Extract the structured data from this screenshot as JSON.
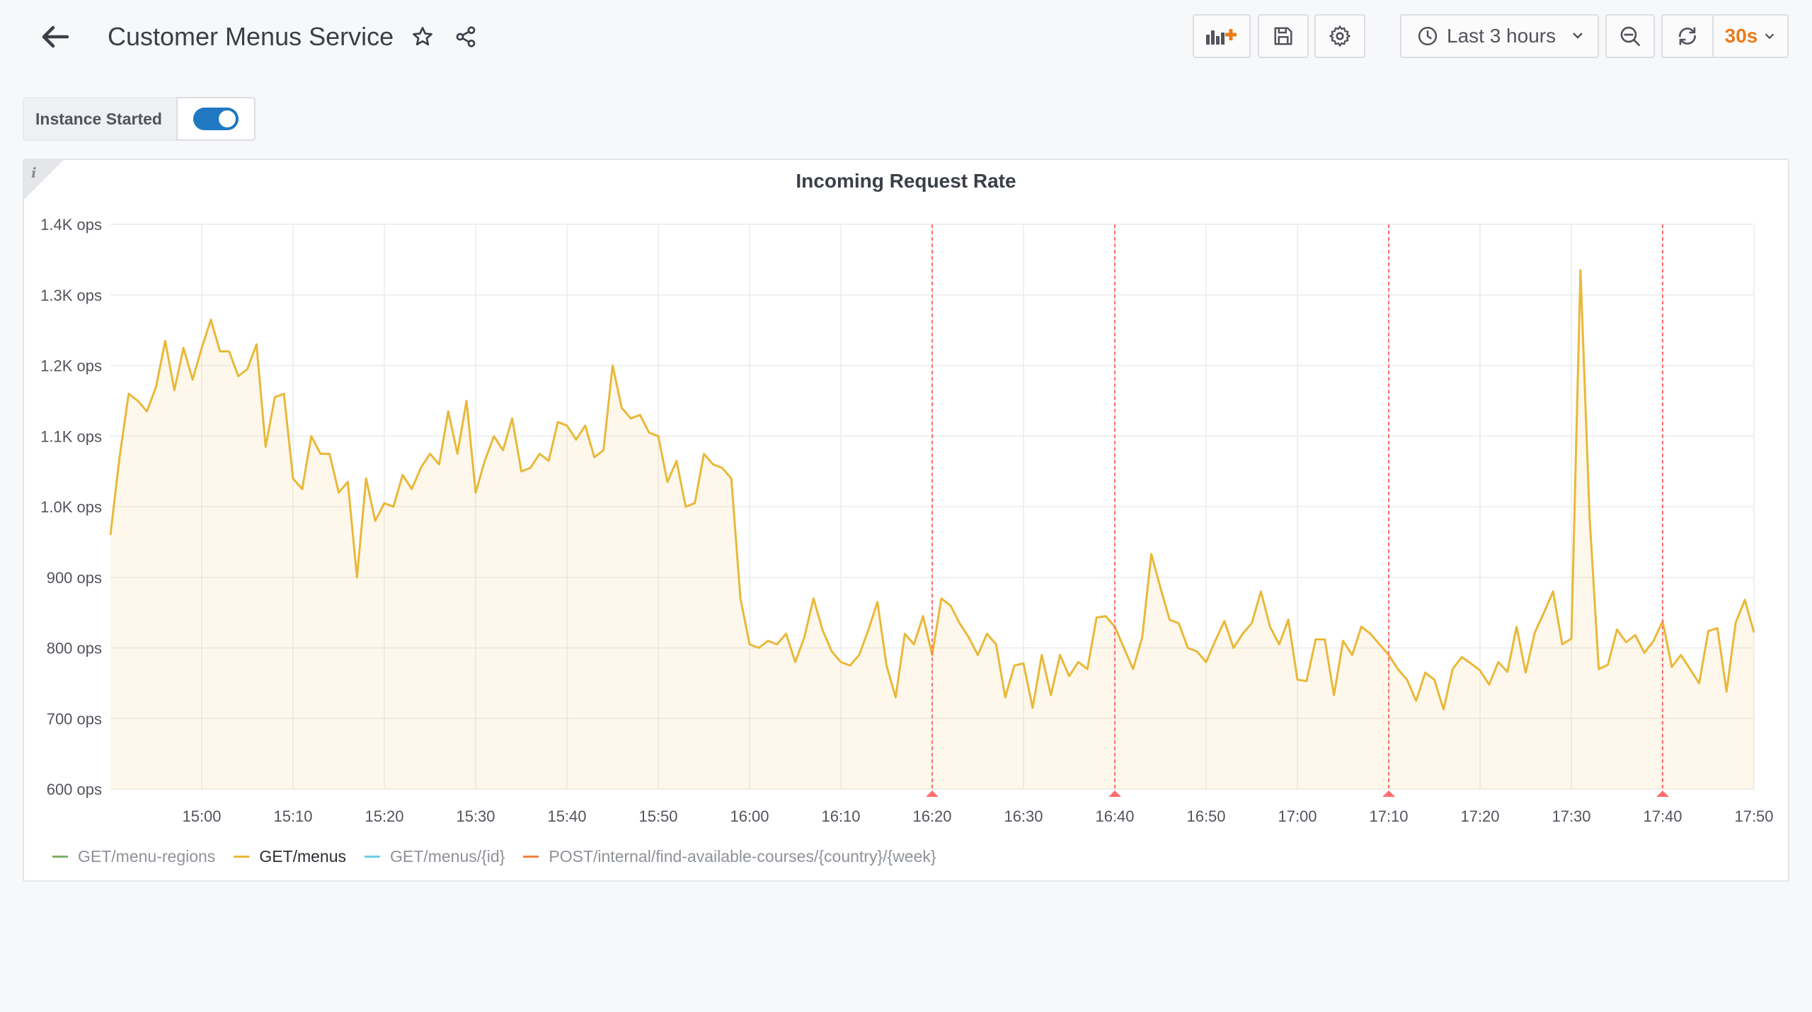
{
  "navbar": {
    "title": "Customer Menus Service",
    "time_range": "Last 3 hours",
    "refresh_interval": "30s"
  },
  "variables": {
    "instance_started": {
      "label": "Instance Started",
      "value": true
    }
  },
  "panel": {
    "title": "Incoming Request Rate",
    "info_glyph": "i",
    "legend": [
      {
        "label": "GET/menu-regions",
        "color": "#7eb26d",
        "active": false
      },
      {
        "label": "GET/menus",
        "color": "#eab839",
        "active": true
      },
      {
        "label": "GET/menus/{id}",
        "color": "#6ed0e0",
        "active": false
      },
      {
        "label": "POST/internal/find-available-courses/{country}/{week}",
        "color": "#ef843c",
        "active": false
      }
    ]
  },
  "chart_data": {
    "type": "area",
    "ylim": [
      600,
      1400
    ],
    "y_tick_labels": [
      "1.4K ops",
      "1.3K ops",
      "1.2K ops",
      "1.1K ops",
      "1.0K ops",
      "900 ops",
      "800 ops",
      "700 ops",
      "600 ops"
    ],
    "y_tick_values": [
      1400,
      1300,
      1200,
      1100,
      1000,
      900,
      800,
      700,
      600
    ],
    "x_range_minutes": [
      "14:50",
      "17:50"
    ],
    "x_tick_labels": [
      "15:00",
      "15:10",
      "15:20",
      "15:30",
      "15:40",
      "15:50",
      "16:00",
      "16:10",
      "16:20",
      "16:30",
      "16:40",
      "16:50",
      "17:00",
      "17:10",
      "17:20",
      "17:30",
      "17:40",
      "17:50"
    ],
    "grid": true,
    "legend_position": "bottom",
    "annotations": [
      "16:20",
      "16:40",
      "17:10",
      "17:40"
    ],
    "annotation_color": "#ff6f6f",
    "series": [
      {
        "name": "GET/menus",
        "color": "#eab839",
        "points": [
          [
            "14:50",
            960
          ],
          [
            "14:51",
            1070
          ],
          [
            "14:52",
            1160
          ],
          [
            "14:53",
            1150
          ],
          [
            "14:54",
            1135
          ],
          [
            "14:55",
            1170
          ],
          [
            "14:56",
            1235
          ],
          [
            "14:57",
            1165
          ],
          [
            "14:58",
            1225
          ],
          [
            "14:59",
            1180
          ],
          [
            "15:00",
            1225
          ],
          [
            "15:01",
            1265
          ],
          [
            "15:02",
            1220
          ],
          [
            "15:03",
            1220
          ],
          [
            "15:04",
            1185
          ],
          [
            "15:05",
            1195
          ],
          [
            "15:06",
            1230
          ],
          [
            "15:07",
            1085
          ],
          [
            "15:08",
            1155
          ],
          [
            "15:09",
            1160
          ],
          [
            "15:10",
            1040
          ],
          [
            "15:11",
            1025
          ],
          [
            "15:12",
            1100
          ],
          [
            "15:13",
            1075
          ],
          [
            "15:14",
            1075
          ],
          [
            "15:15",
            1020
          ],
          [
            "15:16",
            1035
          ],
          [
            "15:17",
            900
          ],
          [
            "15:18",
            1040
          ],
          [
            "15:19",
            980
          ],
          [
            "15:20",
            1005
          ],
          [
            "15:21",
            1000
          ],
          [
            "15:22",
            1045
          ],
          [
            "15:23",
            1025
          ],
          [
            "15:24",
            1055
          ],
          [
            "15:25",
            1075
          ],
          [
            "15:26",
            1060
          ],
          [
            "15:27",
            1135
          ],
          [
            "15:28",
            1075
          ],
          [
            "15:29",
            1150
          ],
          [
            "15:30",
            1020
          ],
          [
            "15:31",
            1065
          ],
          [
            "15:32",
            1100
          ],
          [
            "15:33",
            1080
          ],
          [
            "15:34",
            1125
          ],
          [
            "15:35",
            1050
          ],
          [
            "15:36",
            1055
          ],
          [
            "15:37",
            1075
          ],
          [
            "15:38",
            1065
          ],
          [
            "15:39",
            1120
          ],
          [
            "15:40",
            1115
          ],
          [
            "15:41",
            1095
          ],
          [
            "15:42",
            1115
          ],
          [
            "15:43",
            1070
          ],
          [
            "15:44",
            1080
          ],
          [
            "15:45",
            1200
          ],
          [
            "15:46",
            1140
          ],
          [
            "15:47",
            1125
          ],
          [
            "15:48",
            1130
          ],
          [
            "15:49",
            1105
          ],
          [
            "15:50",
            1100
          ],
          [
            "15:51",
            1035
          ],
          [
            "15:52",
            1065
          ],
          [
            "15:53",
            1000
          ],
          [
            "15:54",
            1005
          ],
          [
            "15:55",
            1075
          ],
          [
            "15:56",
            1060
          ],
          [
            "15:57",
            1055
          ],
          [
            "15:58",
            1040
          ],
          [
            "15:59",
            870
          ],
          [
            "16:00",
            805
          ],
          [
            "16:01",
            800
          ],
          [
            "16:02",
            810
          ],
          [
            "16:03",
            805
          ],
          [
            "16:04",
            820
          ],
          [
            "16:05",
            780
          ],
          [
            "16:06",
            815
          ],
          [
            "16:07",
            870
          ],
          [
            "16:08",
            825
          ],
          [
            "16:09",
            795
          ],
          [
            "16:10",
            780
          ],
          [
            "16:11",
            775
          ],
          [
            "16:12",
            790
          ],
          [
            "16:13",
            825
          ],
          [
            "16:14",
            865
          ],
          [
            "16:15",
            775
          ],
          [
            "16:16",
            730
          ],
          [
            "16:17",
            820
          ],
          [
            "16:18",
            805
          ],
          [
            "16:19",
            845
          ],
          [
            "16:20",
            790
          ],
          [
            "16:21",
            870
          ],
          [
            "16:22",
            860
          ],
          [
            "16:23",
            835
          ],
          [
            "16:24",
            815
          ],
          [
            "16:25",
            790
          ],
          [
            "16:26",
            820
          ],
          [
            "16:27",
            805
          ],
          [
            "16:28",
            730
          ],
          [
            "16:29",
            775
          ],
          [
            "16:30",
            778
          ],
          [
            "16:31",
            715
          ],
          [
            "16:32",
            790
          ],
          [
            "16:33",
            733
          ],
          [
            "16:34",
            790
          ],
          [
            "16:35",
            760
          ],
          [
            "16:36",
            780
          ],
          [
            "16:37",
            770
          ],
          [
            "16:38",
            843
          ],
          [
            "16:39",
            845
          ],
          [
            "16:40",
            830
          ],
          [
            "16:41",
            800
          ],
          [
            "16:42",
            770
          ],
          [
            "16:43",
            815
          ],
          [
            "16:44",
            933
          ],
          [
            "16:45",
            885
          ],
          [
            "16:46",
            840
          ],
          [
            "16:47",
            835
          ],
          [
            "16:48",
            800
          ],
          [
            "16:49",
            795
          ],
          [
            "16:50",
            780
          ],
          [
            "16:51",
            810
          ],
          [
            "16:52",
            838
          ],
          [
            "16:53",
            800
          ],
          [
            "16:54",
            820
          ],
          [
            "16:55",
            835
          ],
          [
            "16:56",
            880
          ],
          [
            "16:57",
            830
          ],
          [
            "16:58",
            805
          ],
          [
            "16:59",
            840
          ],
          [
            "17:00",
            755
          ],
          [
            "17:01",
            753
          ],
          [
            "17:02",
            812
          ],
          [
            "17:03",
            812
          ],
          [
            "17:04",
            733
          ],
          [
            "17:05",
            810
          ],
          [
            "17:06",
            790
          ],
          [
            "17:07",
            830
          ],
          [
            "17:08",
            820
          ],
          [
            "17:09",
            805
          ],
          [
            "17:10",
            790
          ],
          [
            "17:11",
            770
          ],
          [
            "17:12",
            755
          ],
          [
            "17:13",
            725
          ],
          [
            "17:14",
            765
          ],
          [
            "17:15",
            755
          ],
          [
            "17:16",
            713
          ],
          [
            "17:17",
            770
          ],
          [
            "17:18",
            787
          ],
          [
            "17:19",
            778
          ],
          [
            "17:20",
            768
          ],
          [
            "17:21",
            748
          ],
          [
            "17:22",
            780
          ],
          [
            "17:23",
            766
          ],
          [
            "17:24",
            830
          ],
          [
            "17:25",
            765
          ],
          [
            "17:26",
            822
          ],
          [
            "17:27",
            850
          ],
          [
            "17:28",
            880
          ],
          [
            "17:29",
            805
          ],
          [
            "17:30",
            813
          ],
          [
            "17:31",
            1335
          ],
          [
            "17:32",
            985
          ],
          [
            "17:33",
            770
          ],
          [
            "17:34",
            776
          ],
          [
            "17:35",
            826
          ],
          [
            "17:36",
            808
          ],
          [
            "17:37",
            818
          ],
          [
            "17:38",
            793
          ],
          [
            "17:39",
            810
          ],
          [
            "17:40",
            838
          ],
          [
            "17:41",
            773
          ],
          [
            "17:42",
            790
          ],
          [
            "17:43",
            770
          ],
          [
            "17:44",
            750
          ],
          [
            "17:45",
            824
          ],
          [
            "17:46",
            828
          ],
          [
            "17:47",
            738
          ],
          [
            "17:48",
            836
          ],
          [
            "17:49",
            868
          ],
          [
            "17:50",
            822
          ]
        ]
      }
    ]
  }
}
